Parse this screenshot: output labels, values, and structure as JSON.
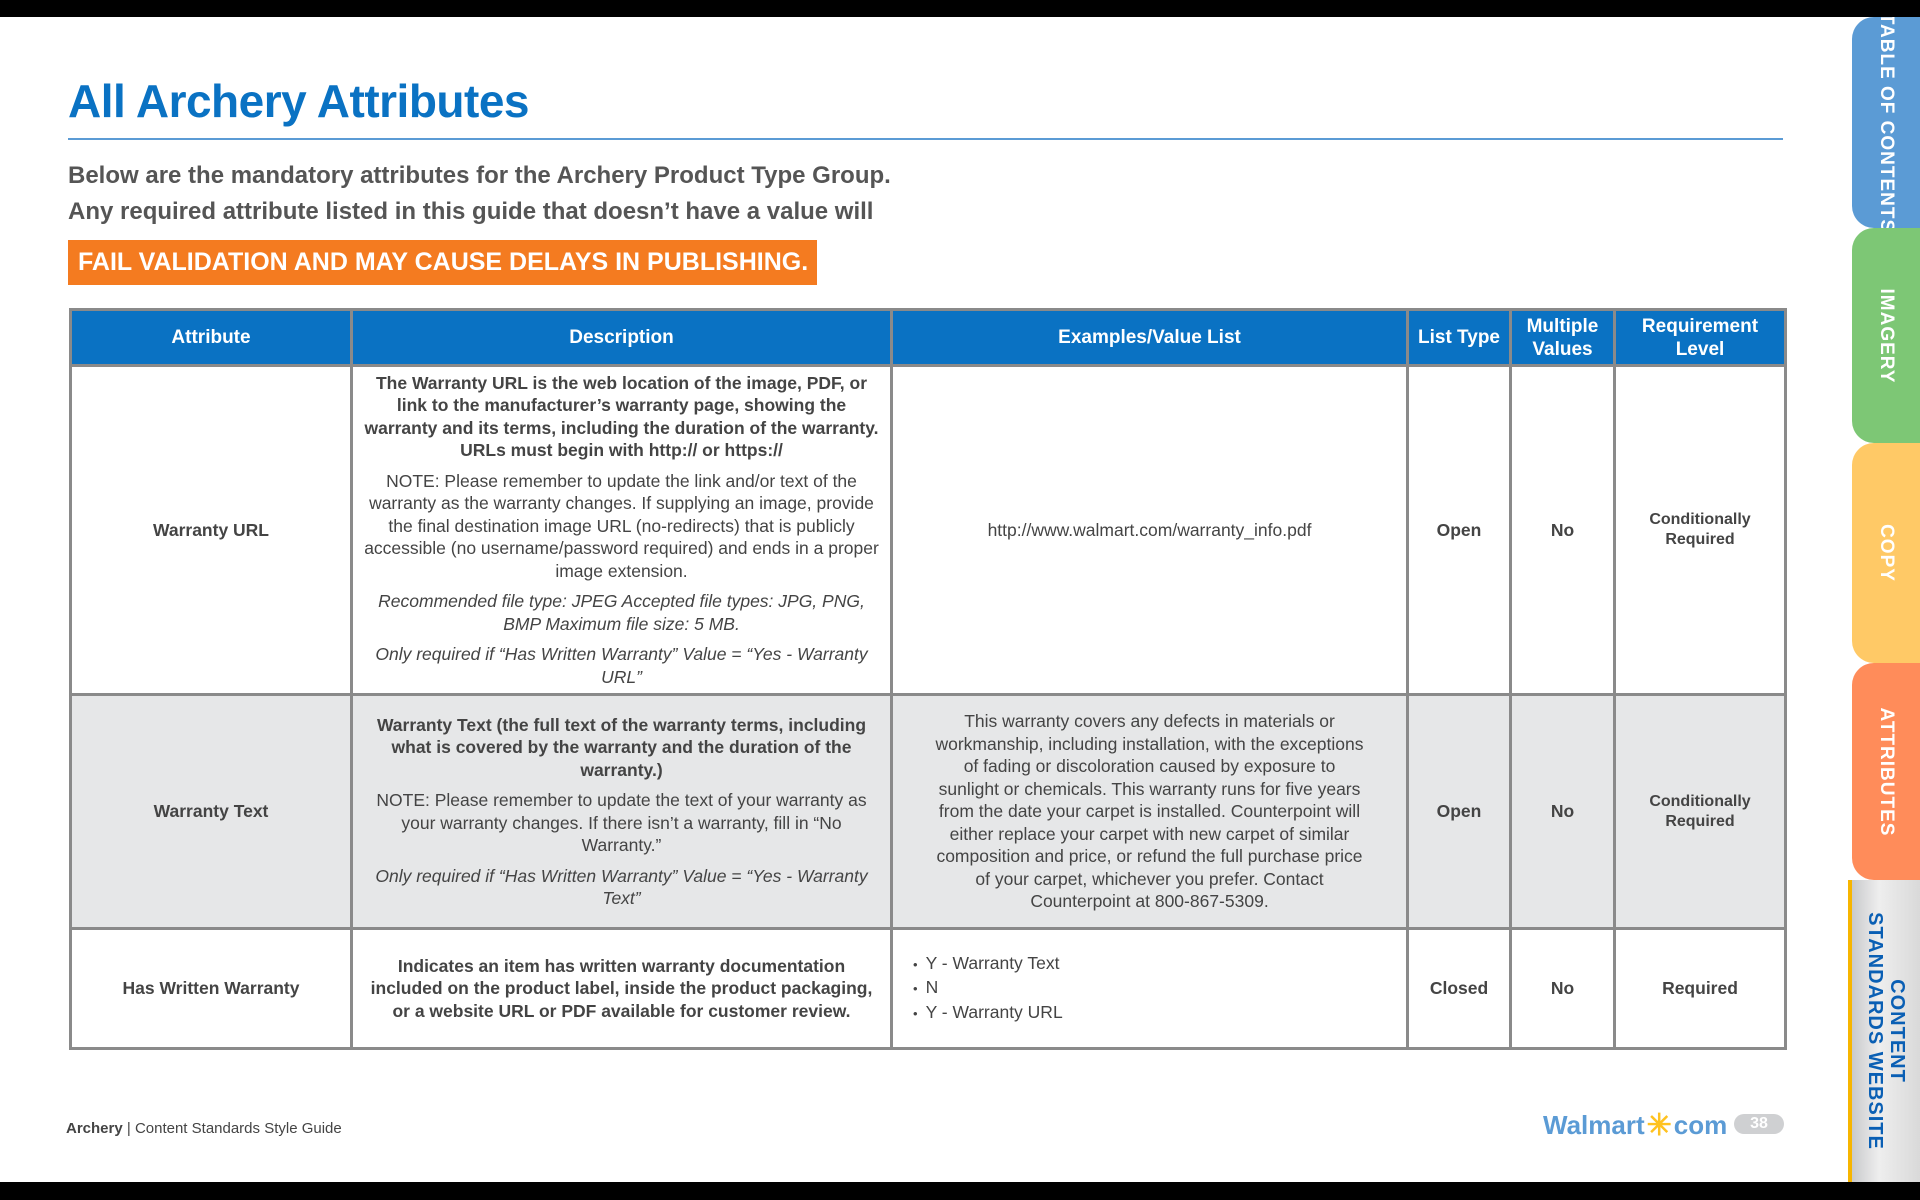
{
  "page": {
    "title": "All Archery Attributes",
    "intro_line1": "Below are the mandatory attributes for the Archery Product Type Group.",
    "intro_line2": "Any required attribute listed in this guide that doesn’t have a value will",
    "banner": "FAIL VALIDATION AND MAY CAUSE DELAYS IN PUBLISHING."
  },
  "table": {
    "headers": [
      "Attribute",
      "Description",
      "Examples/Value List",
      "List Type",
      "Multiple Values",
      "Requirement Level"
    ],
    "rows": [
      {
        "attribute": "Warranty URL",
        "desc_bold": "The Warranty URL is the web location of the image, PDF, or link to the manufacturer’s warranty page, showing the warranty and its terms, including the duration of the warranty. URLs must begin with http:// or https://",
        "desc_note": "NOTE: Please remember to update the link and/or text of the warranty as the warranty changes. If supplying an image, provide the final destination image URL (no-redirects) that is publicly accessible (no username/password required) and ends in a proper image extension.",
        "desc_italic1": "Recommended file type: JPEG Accepted file types: JPG, PNG, BMP Maximum file size: 5 MB.",
        "desc_italic2": "Only required if “Has Written Warranty” Value = “Yes - Warranty URL”",
        "example": "http://www.walmart.com/warranty_info.pdf",
        "list_type": "Open",
        "multiple": "No",
        "requirement": "Conditionally Required"
      },
      {
        "attribute": "Warranty Text",
        "desc_bold": "Warranty Text (the full text of the warranty terms, including what is covered by the warranty and the duration of the warranty.)",
        "desc_note": "NOTE: Please remember to update the text of your warranty as your warranty changes. If there isn’t a warranty, fill in “No Warranty.”",
        "desc_italic2": "Only required if “Has Written Warranty” Value = “Yes - Warranty Text”",
        "example": "This warranty covers any defects in materials or workmanship, including installation, with the exceptions of fading or discoloration caused by exposure to sunlight or chemicals. This warranty runs for five years from the date your carpet is installed. Counterpoint will either replace your carpet with new carpet of similar composition and price, or refund the full purchase price of your carpet, whichever you prefer. Contact Counterpoint at 800-867-5309.",
        "list_type": "Open",
        "multiple": "No",
        "requirement": "Conditionally Required"
      },
      {
        "attribute": "Has Written Warranty",
        "desc_bold": "Indicates an item has written warranty documentation included on the product label, inside the product packaging, or a website URL or PDF available for customer review.",
        "examples": [
          "Y - Warranty Text",
          "N",
          "Y - Warranty URL"
        ],
        "list_type": "Closed",
        "multiple": "No",
        "requirement": "Required"
      }
    ]
  },
  "footer": {
    "section": "Archery",
    "guide": "Content Standards Style Guide",
    "logo_left": "Walmart",
    "logo_right": "com",
    "page_number": "38"
  },
  "side_tabs": [
    {
      "label": "TABLE OF CONTENTS",
      "color": "#5b9bd5"
    },
    {
      "label": "IMAGERY",
      "color": "#7dc775"
    },
    {
      "label": "COPY",
      "color": "#ffc966"
    },
    {
      "label": "ATTRIBUTES",
      "color": "#ff8c5a"
    },
    {
      "label": "CONTENT STANDARDS WEBSITE",
      "color": "#e0e0e0"
    }
  ],
  "colors": {
    "brand_blue": "#0a72c3",
    "banner_orange": "#f47b20",
    "alt_row": "#e6e7e8"
  }
}
